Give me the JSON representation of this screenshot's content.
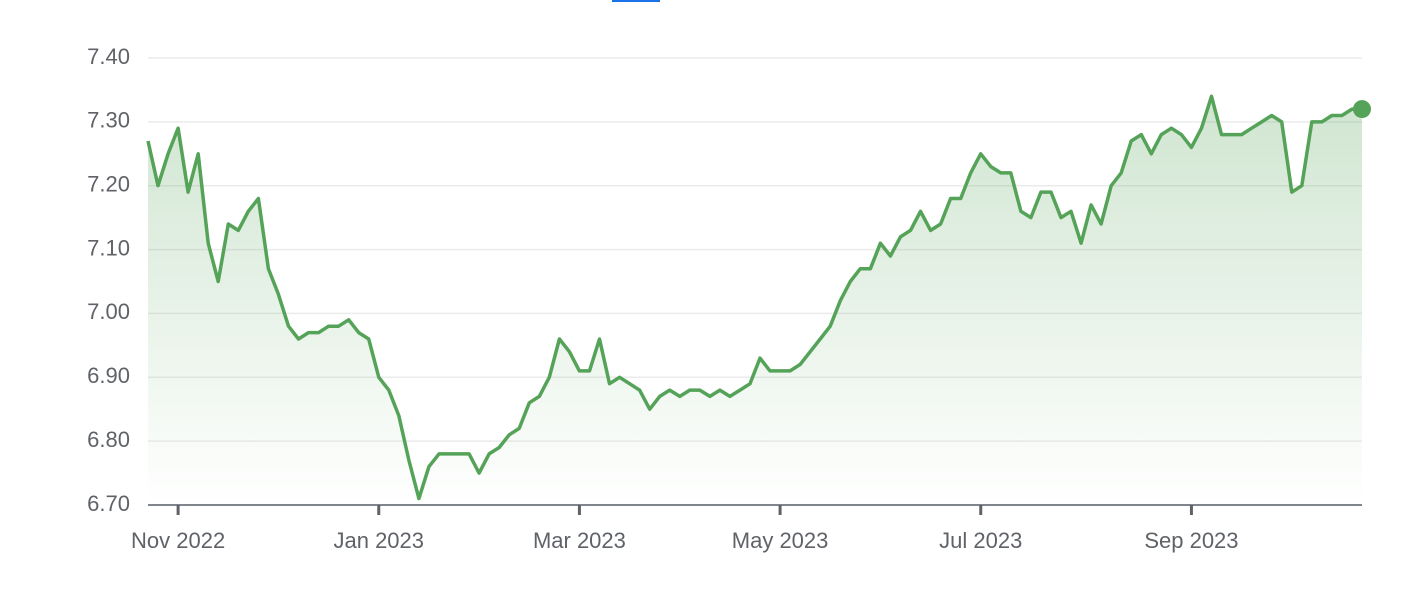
{
  "chart_data": {
    "type": "line",
    "categories": [
      null,
      null,
      null,
      "Nov 2022",
      null,
      null,
      null,
      null,
      null,
      null,
      null,
      null,
      null,
      null,
      null,
      null,
      null,
      null,
      null,
      null,
      null,
      null,
      null,
      "Jan 2023",
      null,
      null,
      null,
      null,
      null,
      null,
      null,
      null,
      null,
      null,
      null,
      null,
      null,
      null,
      null,
      null,
      null,
      null,
      null,
      "Mar 2023",
      null,
      null,
      null,
      null,
      null,
      null,
      null,
      null,
      null,
      null,
      null,
      null,
      null,
      null,
      null,
      null,
      null,
      null,
      null,
      "May 2023",
      null,
      null,
      null,
      null,
      null,
      null,
      null,
      null,
      null,
      null,
      null,
      null,
      null,
      null,
      null,
      null,
      null,
      null,
      null,
      "Jul 2023",
      null,
      null,
      null,
      null,
      null,
      null,
      null,
      null,
      null,
      null,
      null,
      null,
      null,
      null,
      null,
      null,
      null,
      null,
      null,
      null,
      "Sep 2023",
      null,
      null,
      null,
      null,
      null,
      null,
      null,
      null,
      null,
      null,
      null,
      null,
      null,
      null,
      null,
      null,
      null
    ],
    "values": [
      7.27,
      7.2,
      7.25,
      7.29,
      7.19,
      7.25,
      7.11,
      7.05,
      7.14,
      7.13,
      7.16,
      7.18,
      7.07,
      7.03,
      6.98,
      6.96,
      6.97,
      6.97,
      6.98,
      6.98,
      6.99,
      6.97,
      6.96,
      6.9,
      6.88,
      6.84,
      6.77,
      6.71,
      6.76,
      6.78,
      6.78,
      6.78,
      6.78,
      6.75,
      6.78,
      6.79,
      6.81,
      6.82,
      6.86,
      6.87,
      6.9,
      6.96,
      6.94,
      6.91,
      6.91,
      6.96,
      6.89,
      6.9,
      6.89,
      6.88,
      6.85,
      6.87,
      6.88,
      6.87,
      6.88,
      6.88,
      6.87,
      6.88,
      6.87,
      6.88,
      6.89,
      6.93,
      6.91,
      6.91,
      6.91,
      6.92,
      6.94,
      6.96,
      6.98,
      7.02,
      7.05,
      7.07,
      7.07,
      7.11,
      7.09,
      7.12,
      7.13,
      7.16,
      7.13,
      7.14,
      7.18,
      7.18,
      7.22,
      7.25,
      7.23,
      7.22,
      7.22,
      7.16,
      7.15,
      7.19,
      7.19,
      7.15,
      7.16,
      7.11,
      7.17,
      7.14,
      7.2,
      7.22,
      7.27,
      7.28,
      7.25,
      7.28,
      7.29,
      7.28,
      7.26,
      7.29,
      7.34,
      7.28,
      7.28,
      7.28,
      7.29,
      7.3,
      7.31,
      7.3,
      7.19,
      7.2,
      7.3,
      7.3,
      7.31,
      7.31,
      7.32,
      7.32
    ],
    "color": "#55a358",
    "ylim": [
      6.7,
      7.4
    ],
    "yticks": [
      {
        "value": 6.7,
        "label": "6.70"
      },
      {
        "value": 6.8,
        "label": "6.80"
      },
      {
        "value": 6.9,
        "label": "6.90"
      },
      {
        "value": 7.0,
        "label": "7.00"
      },
      {
        "value": 7.1,
        "label": "7.10"
      },
      {
        "value": 7.2,
        "label": "7.20"
      },
      {
        "value": 7.3,
        "label": "7.30"
      },
      {
        "value": 7.4,
        "label": "7.40"
      }
    ],
    "grid": true
  }
}
